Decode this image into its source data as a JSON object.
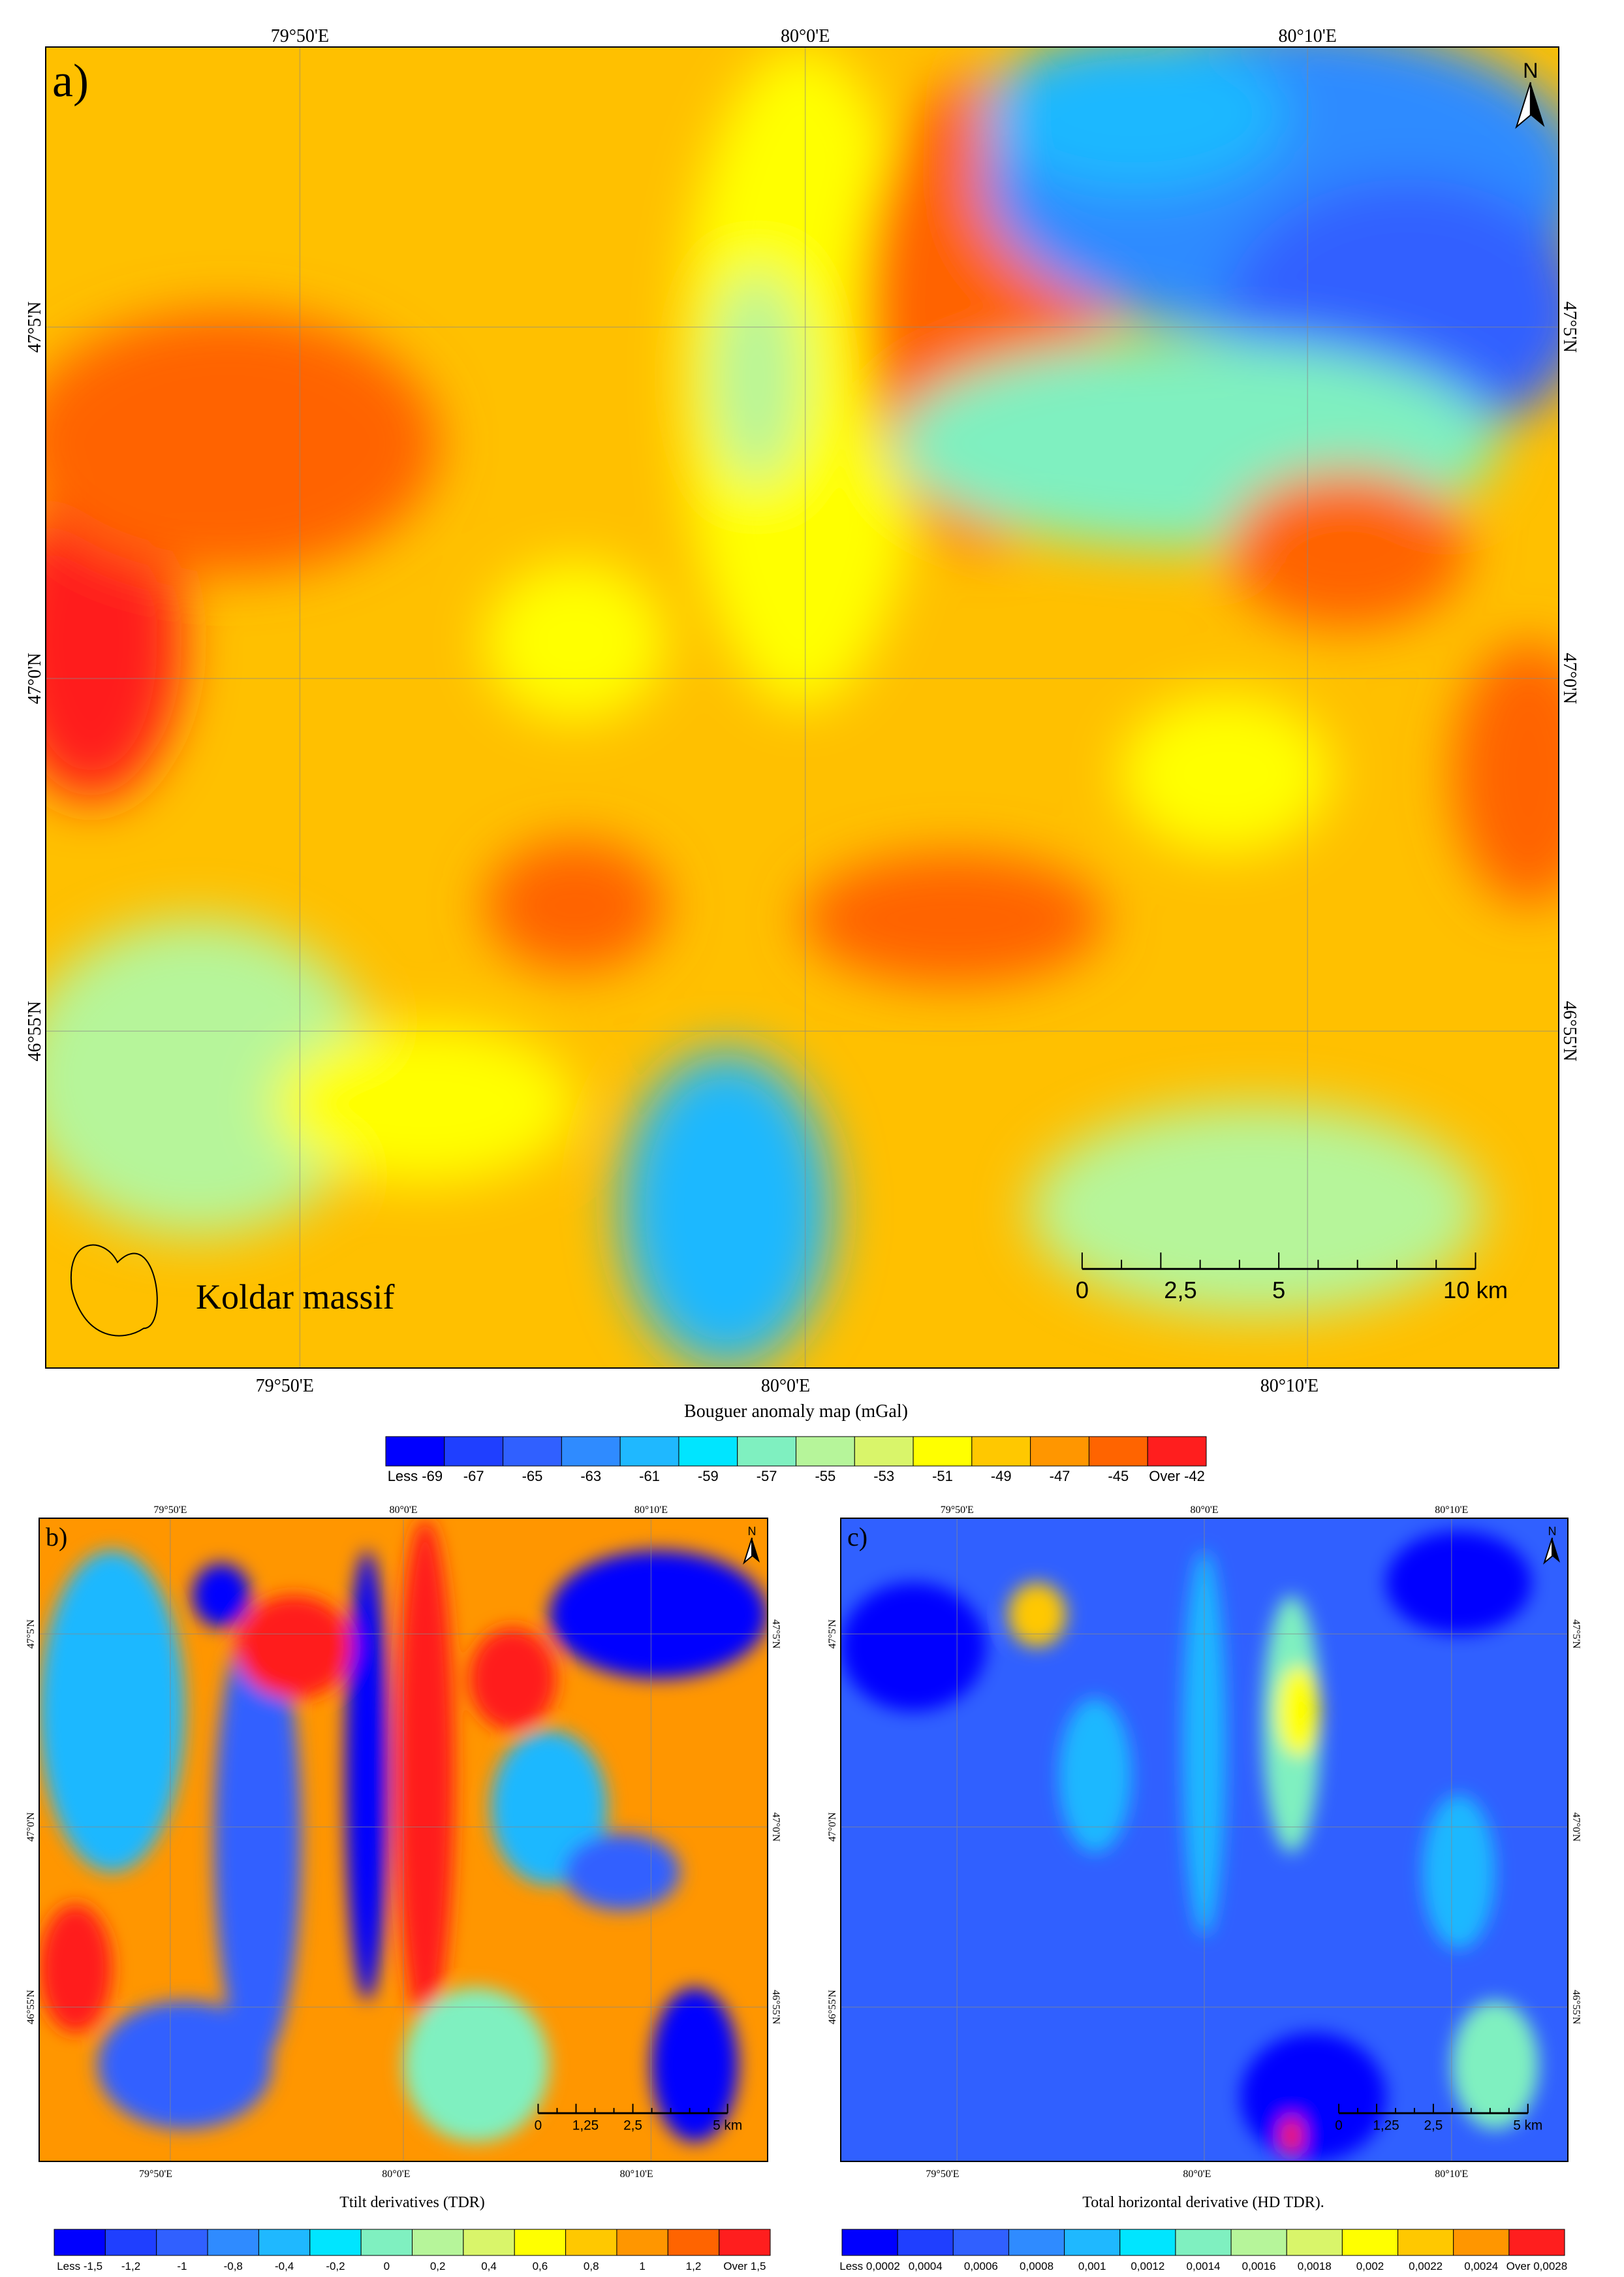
{
  "panels": [
    {
      "label": "a)",
      "north": "N",
      "lon_labels_top": [
        "79°50'E",
        "80°0'E",
        "80°10'E"
      ],
      "lon_labels_bottom": [
        "79°50'E",
        "80°0'E",
        "80°10'E"
      ],
      "lat_labels": [
        "47°5'N",
        "47°0'N",
        "46°55'N"
      ],
      "scale_labels": [
        "0",
        "2,5",
        "5",
        "10 km"
      ],
      "legend_label": "Koldar massif"
    },
    {
      "label": "b)",
      "north": "N",
      "lon_labels_top": [
        "79°50'E",
        "80°0'E",
        "80°10'E"
      ],
      "lon_labels_bottom": [
        "79°50'E",
        "80°0'E",
        "80°10'E"
      ],
      "lat_labels": [
        "47°5'N",
        "47°0'N",
        "46°55'N"
      ],
      "scale_labels": [
        "0",
        "1,25",
        "2,5",
        "5 km"
      ]
    },
    {
      "label": "c)",
      "north": "N",
      "lon_labels_top": [
        "79°50'E",
        "80°0'E",
        "80°10'E"
      ],
      "lon_labels_bottom": [
        "79°50'E",
        "80°0'E",
        "80°10'E"
      ],
      "lat_labels": [
        "47°5'N",
        "47°0'N",
        "46°55'N"
      ],
      "scale_labels": [
        "0",
        "1,25",
        "2,5",
        "5 km"
      ]
    }
  ],
  "colorbars": [
    {
      "title": "Bouguer anomaly map (mGal)",
      "labels": [
        "Less -69",
        "-67",
        "-65",
        "-63",
        "-61",
        "-59",
        "-57",
        "-55",
        "-53",
        "-51",
        "-49",
        "-47",
        "-45",
        "Over -42"
      ],
      "colors": [
        "#0000ff",
        "#1f3fff",
        "#3060ff",
        "#2f8bff",
        "#1fb8ff",
        "#00e5ff",
        "#7ff0c0",
        "#b6f59a",
        "#d9f56a",
        "#ffff00",
        "#ffc800",
        "#ff9600",
        "#ff6400",
        "#ff1e1e"
      ]
    },
    {
      "title": "Ttilt derivatives  (TDR)",
      "labels": [
        "Less -1,5",
        "-1,2",
        "-1",
        "-0,8",
        "-0,4",
        "-0,2",
        "0",
        "0,2",
        "0,4",
        "0,6",
        "0,8",
        "1",
        "1,2",
        "Over 1,5"
      ],
      "colors": [
        "#0000ff",
        "#1f3fff",
        "#3060ff",
        "#2f8bff",
        "#1fb8ff",
        "#00e5ff",
        "#7ff0c0",
        "#b6f59a",
        "#d9f56a",
        "#ffff00",
        "#ffc800",
        "#ff9600",
        "#ff6400",
        "#ff1e1e"
      ]
    },
    {
      "title": "Total horizontal derivative (HD TDR).",
      "labels": [
        "Less 0,0002",
        "0,0004",
        "0,0006",
        "0,0008",
        "0,001",
        "0,0012",
        "0,0014",
        "0,0016",
        "0,0018",
        "0,002",
        "0,0022",
        "0,0024",
        "Over 0,0028"
      ],
      "colors": [
        "#0000ff",
        "#1f3fff",
        "#3060ff",
        "#2f8bff",
        "#1fb8ff",
        "#00e5ff",
        "#7ff0c0",
        "#b6f59a",
        "#d9f56a",
        "#ffff00",
        "#ffc800",
        "#ff9600",
        "#ff1e1e"
      ]
    }
  ]
}
